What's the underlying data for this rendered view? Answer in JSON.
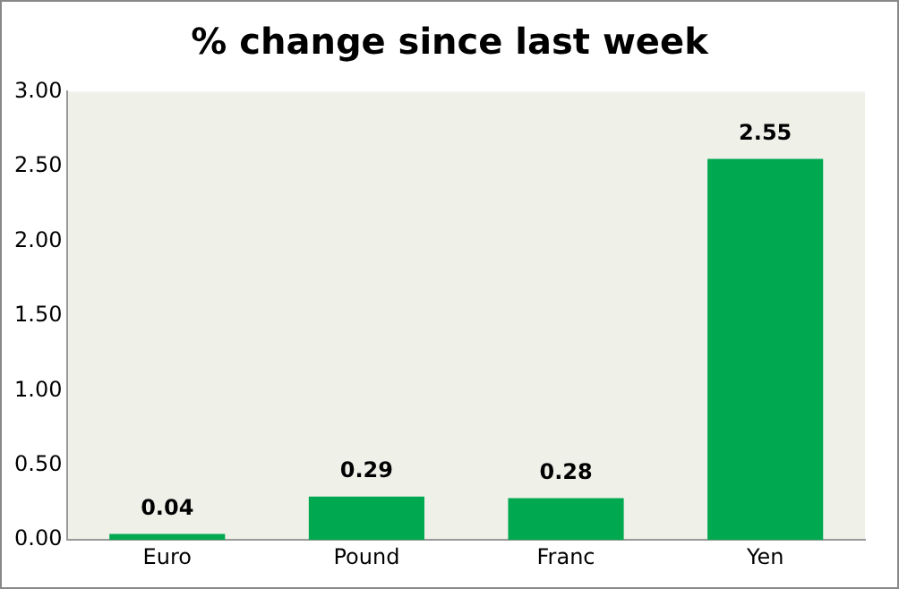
{
  "chart_data": {
    "type": "bar",
    "title": "% change since last week",
    "categories": [
      "Euro",
      "Pound",
      "Franc",
      "Yen"
    ],
    "values": [
      0.04,
      0.29,
      0.28,
      2.55
    ],
    "color": "#00a84f",
    "ylim": [
      0,
      3
    ],
    "yticks": [
      {
        "value": 0,
        "label": "0.00"
      },
      {
        "value": 0.5,
        "label": "0.50"
      },
      {
        "value": 1,
        "label": "1.00"
      },
      {
        "value": 1.5,
        "label": "1.50"
      },
      {
        "value": 2,
        "label": "2.00"
      },
      {
        "value": 2.5,
        "label": "2.50"
      },
      {
        "value": 3,
        "label": "3.00"
      }
    ],
    "data_labels": true,
    "grid": false,
    "legend": false
  }
}
